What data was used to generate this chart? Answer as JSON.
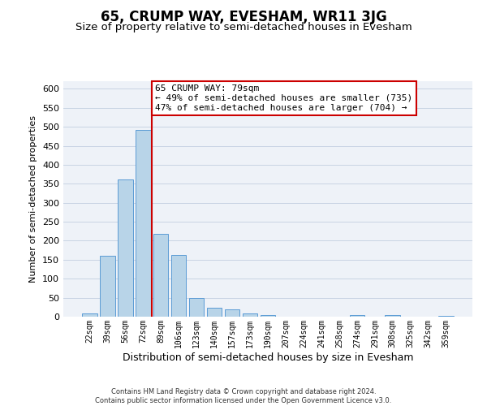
{
  "title": "65, CRUMP WAY, EVESHAM, WR11 3JG",
  "subtitle": "Size of property relative to semi-detached houses in Evesham",
  "xlabel": "Distribution of semi-detached houses by size in Evesham",
  "ylabel": "Number of semi-detached properties",
  "bar_labels": [
    "22sqm",
    "39sqm",
    "56sqm",
    "72sqm",
    "89sqm",
    "106sqm",
    "123sqm",
    "140sqm",
    "157sqm",
    "173sqm",
    "190sqm",
    "207sqm",
    "224sqm",
    "241sqm",
    "258sqm",
    "274sqm",
    "291sqm",
    "308sqm",
    "325sqm",
    "342sqm",
    "359sqm"
  ],
  "bar_values": [
    8,
    160,
    362,
    492,
    218,
    163,
    50,
    24,
    20,
    8,
    5,
    1,
    0,
    1,
    0,
    5,
    0,
    5,
    0,
    0,
    3
  ],
  "bar_color": "#b8d4e8",
  "bar_edge_color": "#5b9bd5",
  "vline_color": "#cc0000",
  "ylim": [
    0,
    620
  ],
  "yticks": [
    0,
    50,
    100,
    150,
    200,
    250,
    300,
    350,
    400,
    450,
    500,
    550,
    600
  ],
  "grid_color": "#c8d4e4",
  "bg_color": "#eef2f8",
  "annotation_title": "65 CRUMP WAY: 79sqm",
  "annotation_line1": "← 49% of semi-detached houses are smaller (735)",
  "annotation_line2": "47% of semi-detached houses are larger (704) →",
  "annotation_box_color": "#cc0000",
  "footer_line1": "Contains HM Land Registry data © Crown copyright and database right 2024.",
  "footer_line2": "Contains public sector information licensed under the Open Government Licence v3.0.",
  "title_fontsize": 12,
  "subtitle_fontsize": 9.5,
  "ylabel_fontsize": 8,
  "xlabel_fontsize": 9,
  "tick_label_fontsize": 7,
  "ytick_fontsize": 8,
  "annotation_fontsize": 8,
  "footer_fontsize": 6
}
